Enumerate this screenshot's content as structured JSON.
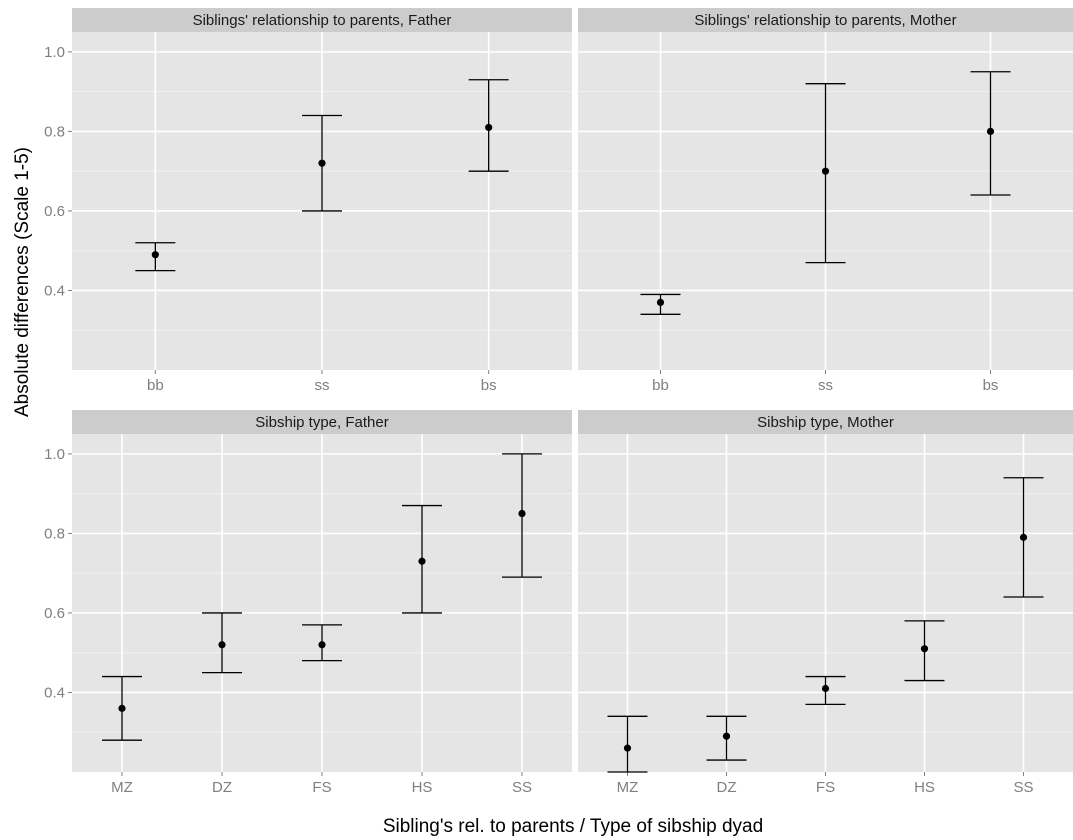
{
  "chart_data": {
    "type": "errorbar",
    "xlabel": "Sibling's rel. to parents / Type of sibship dyad",
    "ylabel": "Absolute differences (Scale 1-5)",
    "ylim": [
      0.2,
      1.05
    ],
    "y_ticks": [
      0.4,
      0.6,
      0.8,
      1.0
    ],
    "y_tick_labels": [
      "0.4",
      "0.6",
      "0.8",
      "1.0"
    ],
    "grid": true,
    "panels": [
      {
        "title": "Siblings' relationship to parents, Father",
        "categories": [
          "bb",
          "ss",
          "bs"
        ],
        "points": [
          {
            "x": "bb",
            "y": 0.49,
            "ymin": 0.45,
            "ymax": 0.52
          },
          {
            "x": "ss",
            "y": 0.72,
            "ymin": 0.6,
            "ymax": 0.84
          },
          {
            "x": "bs",
            "y": 0.81,
            "ymin": 0.7,
            "ymax": 0.93
          }
        ]
      },
      {
        "title": "Siblings' relationship to parents, Mother",
        "categories": [
          "bb",
          "ss",
          "bs"
        ],
        "points": [
          {
            "x": "bb",
            "y": 0.37,
            "ymin": 0.34,
            "ymax": 0.39
          },
          {
            "x": "ss",
            "y": 0.7,
            "ymin": 0.47,
            "ymax": 0.92
          },
          {
            "x": "bs",
            "y": 0.8,
            "ymin": 0.64,
            "ymax": 0.95
          }
        ]
      },
      {
        "title": "Sibship type, Father",
        "categories": [
          "MZ",
          "DZ",
          "FS",
          "HS",
          "SS"
        ],
        "points": [
          {
            "x": "MZ",
            "y": 0.36,
            "ymin": 0.28,
            "ymax": 0.44
          },
          {
            "x": "DZ",
            "y": 0.52,
            "ymin": 0.45,
            "ymax": 0.6
          },
          {
            "x": "FS",
            "y": 0.52,
            "ymin": 0.48,
            "ymax": 0.57
          },
          {
            "x": "HS",
            "y": 0.73,
            "ymin": 0.6,
            "ymax": 0.87
          },
          {
            "x": "SS",
            "y": 0.85,
            "ymin": 0.69,
            "ymax": 1.0
          }
        ]
      },
      {
        "title": "Sibship type, Mother",
        "categories": [
          "MZ",
          "DZ",
          "FS",
          "HS",
          "SS"
        ],
        "points": [
          {
            "x": "MZ",
            "y": 0.26,
            "ymin": 0.2,
            "ymax": 0.34
          },
          {
            "x": "DZ",
            "y": 0.29,
            "ymin": 0.23,
            "ymax": 0.34
          },
          {
            "x": "FS",
            "y": 0.41,
            "ymin": 0.37,
            "ymax": 0.44
          },
          {
            "x": "HS",
            "y": 0.51,
            "ymin": 0.43,
            "ymax": 0.58
          },
          {
            "x": "SS",
            "y": 0.79,
            "ymin": 0.64,
            "ymax": 0.94
          }
        ]
      }
    ],
    "colors": {
      "panel_bg": "#e5e5e5",
      "strip_bg": "#cccccc",
      "grid_major": "#ffffff",
      "grid_minor": "#f2f2f2",
      "mark": "#000000",
      "tick_text": "#7f7f7f"
    }
  }
}
